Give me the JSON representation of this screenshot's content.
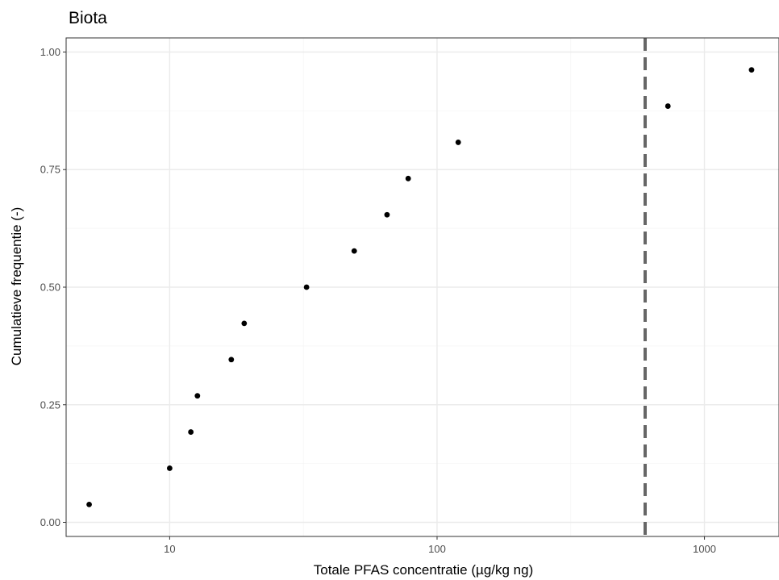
{
  "chart_data": {
    "type": "scatter",
    "title": "Biota",
    "xlabel": "Totale PFAS concentratie (µg/kg ng)",
    "ylabel": "Cumulatieve frequentie (-)",
    "x_scale": "log10",
    "xlim": [
      4.1,
      1900
    ],
    "ylim": [
      -0.03,
      1.03
    ],
    "x_ticks": [
      10,
      100,
      1000
    ],
    "x_tick_labels": [
      "10",
      "100",
      "1000"
    ],
    "y_ticks": [
      0,
      0.25,
      0.5,
      0.75,
      1
    ],
    "y_tick_labels": [
      "0.00",
      "0.25",
      "0.50",
      "0.75",
      "1.00"
    ],
    "grid": true,
    "legend": "none",
    "point_color": "#000000",
    "reference_line": {
      "x": 600,
      "style": "dashed",
      "color": "#666666"
    },
    "points": [
      {
        "x": 5.0,
        "y": 0.038
      },
      {
        "x": 10.0,
        "y": 0.115
      },
      {
        "x": 12.0,
        "y": 0.192
      },
      {
        "x": 12.7,
        "y": 0.269
      },
      {
        "x": 17.0,
        "y": 0.346
      },
      {
        "x": 19.0,
        "y": 0.423
      },
      {
        "x": 32.5,
        "y": 0.5
      },
      {
        "x": 49.0,
        "y": 0.577
      },
      {
        "x": 65.0,
        "y": 0.654
      },
      {
        "x": 78.0,
        "y": 0.731
      },
      {
        "x": 120.0,
        "y": 0.808
      },
      {
        "x": 730.0,
        "y": 0.885
      },
      {
        "x": 1500.0,
        "y": 0.962
      }
    ]
  }
}
